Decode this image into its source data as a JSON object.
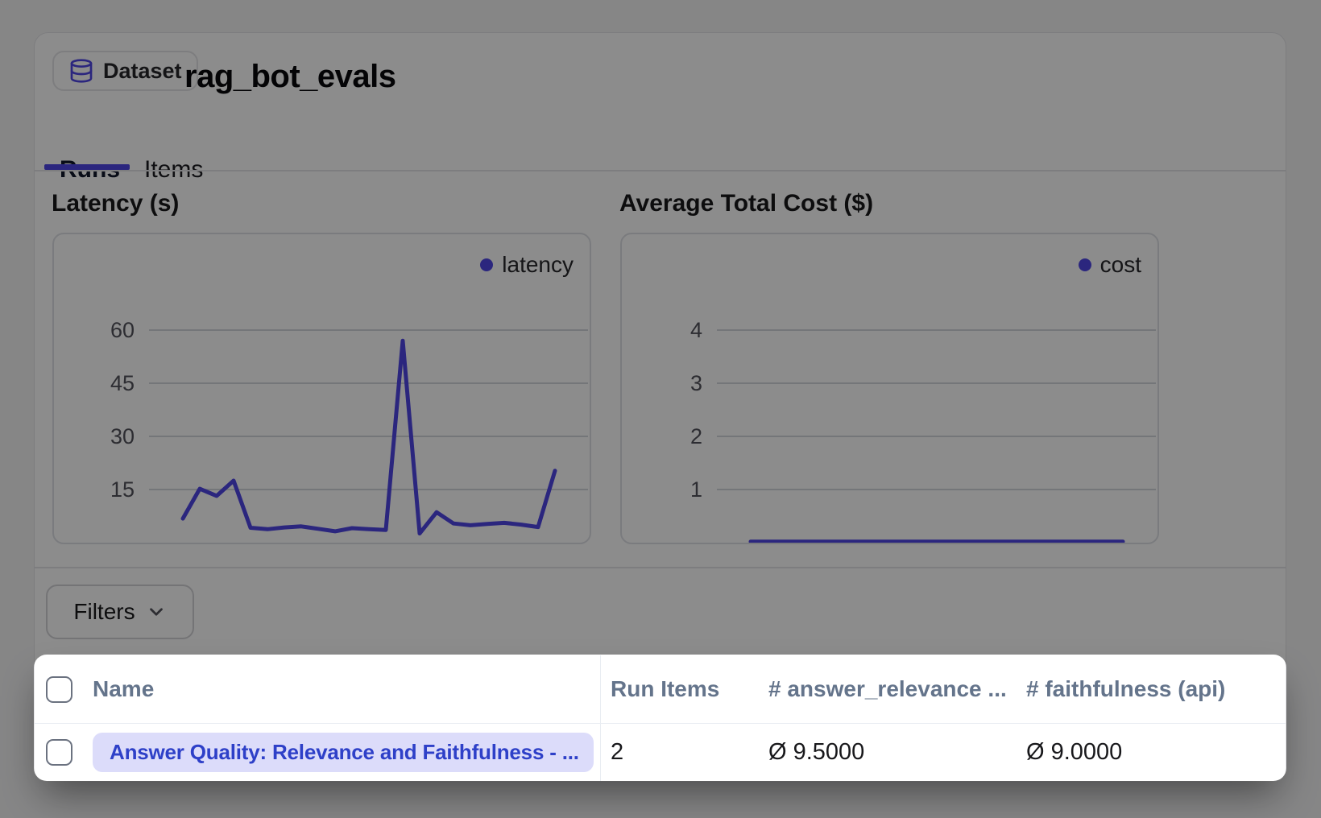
{
  "header": {
    "badge_label": "Dataset",
    "title": "rag_bot_evals"
  },
  "tabs": [
    {
      "label": "Runs",
      "active": true
    },
    {
      "label": "Items",
      "active": false
    }
  ],
  "chart_data": [
    {
      "type": "line",
      "title": "Latency (s)",
      "series": [
        {
          "name": "latency",
          "values": [
            6.8,
            15.2,
            13.2,
            17.5,
            4.2,
            3.8,
            4.3,
            4.6,
            3.9,
            3.2,
            4.1,
            3.8,
            3.6,
            57,
            2.6,
            8.6,
            5.4,
            4.9,
            5.3,
            5.6,
            5.1,
            4.4,
            20.3
          ]
        }
      ],
      "xlabel": "",
      "ylabel": "",
      "yticks": [
        15,
        30,
        45,
        60
      ],
      "ylim": [
        0,
        87
      ],
      "grid": true,
      "legend_position": "top-right",
      "line_color": "#4f46e5"
    },
    {
      "type": "line",
      "title": "Average Total Cost ($)",
      "series": [
        {
          "name": "cost",
          "values": [
            0.02,
            0.02,
            0.02,
            0.02,
            0.02,
            0.02,
            0.02,
            0.02,
            0.02,
            0.02,
            0.02,
            0.02,
            0.02,
            0.02,
            0.02,
            0.02,
            0.02,
            0.02,
            0.02,
            0.02,
            0.02,
            0.02,
            0.02
          ]
        }
      ],
      "xlabel": "",
      "ylabel": "",
      "yticks": [
        1,
        2,
        3,
        4
      ],
      "ylim": [
        0,
        5.8
      ],
      "grid": true,
      "legend_position": "top-right",
      "line_color": "#4f46e5"
    }
  ],
  "filters": {
    "label": "Filters"
  },
  "table": {
    "columns": [
      "Name",
      "Run Items",
      "# answer_relevance ...",
      "# faithfulness (api)"
    ],
    "rows": [
      {
        "name": "Answer Quality: Relevance and Faithfulness - ...",
        "run_items": "2",
        "answer_relevance": "Ø 9.5000",
        "faithfulness": "Ø 9.0000"
      }
    ]
  },
  "colors": {
    "accent_indigo": "#4f46e5",
    "pill_background": "#dcdcfa",
    "pill_text": "#2e40c8",
    "header_text": "#64748b",
    "overlay": "rgba(0,0,0,0.45)"
  }
}
